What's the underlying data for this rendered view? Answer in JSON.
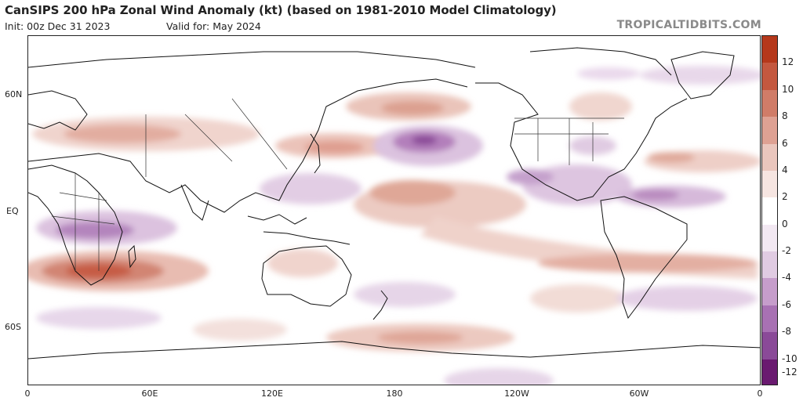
{
  "header": {
    "title": "CanSIPS 200 hPa Zonal Wind Anomaly (kt) (based on 1981-2010 Model Climatology)",
    "init": "Init: 00z Dec 31 2023",
    "valid": "Valid for: May 2024",
    "brand": "TROPICALTIDBITS.COM"
  },
  "map": {
    "lat_labels": [
      "60N",
      "EQ",
      "60S"
    ],
    "lon_labels": [
      "0",
      "60E",
      "120E",
      "180",
      "120W",
      "60W",
      "0"
    ]
  },
  "colorbar": {
    "labels": [
      "12",
      "10",
      "8",
      "6",
      "4",
      "2",
      "0",
      "-2",
      "-4",
      "-6",
      "-8",
      "-10",
      "-12"
    ],
    "colors": [
      "#b5381b",
      "#c4583f",
      "#d07c68",
      "#dea193",
      "#eac6bd",
      "#f6e5e1",
      "#ffffff",
      "#f2e8f2",
      "#e0cbe2",
      "#c69dcb",
      "#a871b3",
      "#8a4a98",
      "#6a1a70"
    ]
  }
}
